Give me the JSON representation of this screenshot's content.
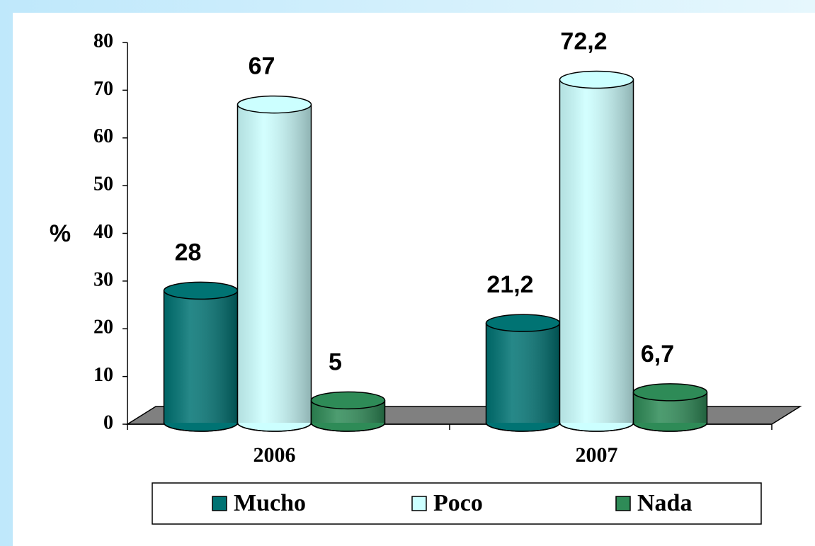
{
  "chart_data": {
    "type": "bar3d",
    "categories": [
      "2006",
      "2007"
    ],
    "series": [
      {
        "name": "Mucho",
        "color": "#007373",
        "values": [
          28,
          21.2
        ],
        "value_labels": [
          "28",
          "21,2"
        ]
      },
      {
        "name": "Poco",
        "color": "#ccffff",
        "values": [
          67,
          72.2
        ],
        "value_labels": [
          "67",
          "72,2"
        ]
      },
      {
        "name": "Nada",
        "color": "#2e8b57",
        "values": [
          5,
          6.7
        ],
        "value_labels": [
          "5",
          "6,7"
        ]
      }
    ],
    "y_label": "%",
    "ylim": [
      0,
      80
    ],
    "yticks": [
      0,
      10,
      20,
      30,
      40,
      50,
      60,
      70,
      80
    ],
    "legend": "bottom"
  }
}
